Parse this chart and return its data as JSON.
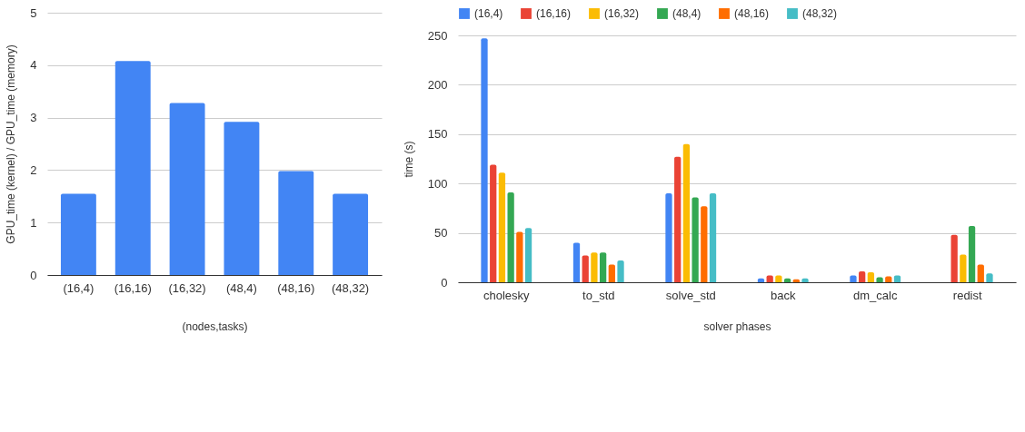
{
  "chart_data": [
    {
      "type": "bar",
      "categories": [
        "(16,4)",
        "(16,16)",
        "(16,32)",
        "(48,4)",
        "(48,16)",
        "(48,32)"
      ],
      "values": [
        1.55,
        4.08,
        3.28,
        2.92,
        1.98,
        1.55
      ],
      "color": "#4285f4",
      "xlabel": "(nodes,tasks)",
      "ylabel": "GPU_time (kernel) / GPU_time (memory)",
      "ylim": [
        0,
        5
      ],
      "yticks": [
        0,
        1,
        2,
        3,
        4,
        5
      ],
      "grid": "y"
    },
    {
      "type": "bar",
      "categories": [
        "cholesky",
        "to_std",
        "solve_std",
        "back",
        "dm_calc",
        "redist"
      ],
      "xlabel": "solver phases",
      "ylabel": "time (s)",
      "ylim": [
        0,
        250
      ],
      "yticks": [
        0,
        50,
        100,
        150,
        200,
        250
      ],
      "grid": "y",
      "legend": "top",
      "series": [
        {
          "name": "(16,4)",
          "color": "#4285f4",
          "values": [
            247,
            40,
            90,
            4,
            7,
            null
          ]
        },
        {
          "name": "(16,16)",
          "color": "#ea4335",
          "values": [
            119,
            27,
            127,
            7,
            11,
            48
          ]
        },
        {
          "name": "(16,32)",
          "color": "#fbbc04",
          "values": [
            111,
            30,
            140,
            7,
            10,
            28
          ]
        },
        {
          "name": "(48,4)",
          "color": "#34a853",
          "values": [
            91,
            30,
            86,
            4,
            5,
            57
          ]
        },
        {
          "name": "(48,16)",
          "color": "#ff6d01",
          "values": [
            51,
            18,
            77,
            3,
            6,
            18
          ]
        },
        {
          "name": "(48,32)",
          "color": "#46bdc6",
          "values": [
            55,
            22,
            90,
            4,
            7,
            9
          ]
        }
      ]
    }
  ]
}
